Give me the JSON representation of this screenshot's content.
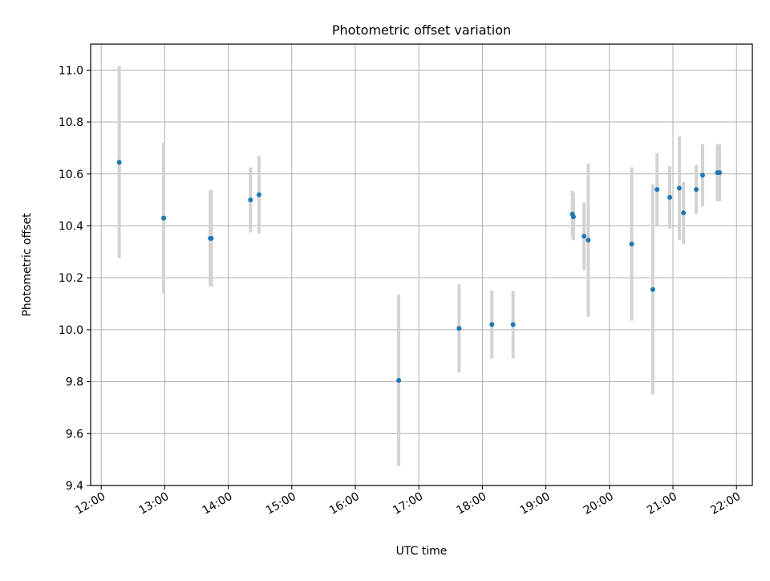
{
  "chart_data": {
    "type": "scatter",
    "title": "Photometric offset variation",
    "xlabel": "UTC time",
    "ylabel": "Photometric offset",
    "xlim_minutes": [
      710,
      1335
    ],
    "ylim": [
      9.4,
      11.1
    ],
    "x_ticks": [
      "12:00",
      "13:00",
      "14:00",
      "15:00",
      "16:00",
      "17:00",
      "18:00",
      "19:00",
      "20:00",
      "21:00",
      "22:00"
    ],
    "y_ticks": [
      9.4,
      9.6,
      9.8,
      10.0,
      10.2,
      10.4,
      10.6,
      10.8,
      11.0
    ],
    "y_tick_labels": [
      "9.4",
      "9.6",
      "9.8",
      "10.0",
      "10.2",
      "10.4",
      "10.6",
      "10.8",
      "11.0"
    ],
    "grid": true,
    "x_tick_rotation_deg": 30,
    "colors": {
      "point": "#1f77b4",
      "errorbar": "#d3d3d3",
      "grid": "#b0b0b0",
      "axes": "#000000"
    },
    "points": [
      {
        "time": "12:17",
        "y": 10.645,
        "err": 0.37
      },
      {
        "time": "12:59",
        "y": 10.43,
        "err": 0.29
      },
      {
        "time": "13:43",
        "y": 10.352,
        "err": 0.185
      },
      {
        "time": "13:44",
        "y": 10.352,
        "err": 0.185
      },
      {
        "time": "14:21",
        "y": 10.5,
        "err": 0.125
      },
      {
        "time": "14:29",
        "y": 10.52,
        "err": 0.15
      },
      {
        "time": "16:41",
        "y": 9.805,
        "err": 0.33
      },
      {
        "time": "17:38",
        "y": 10.005,
        "err": 0.17
      },
      {
        "time": "18:09",
        "y": 10.02,
        "err": 0.13
      },
      {
        "time": "18:29",
        "y": 10.02,
        "err": 0.13
      },
      {
        "time": "19:25",
        "y": 10.445,
        "err": 0.09
      },
      {
        "time": "19:26",
        "y": 10.435,
        "err": 0.09
      },
      {
        "time": "19:36",
        "y": 10.36,
        "err": 0.13
      },
      {
        "time": "19:40",
        "y": 10.345,
        "err": 0.295
      },
      {
        "time": "20:21",
        "y": 10.33,
        "err": 0.295
      },
      {
        "time": "20:41",
        "y": 10.155,
        "err": 0.405
      },
      {
        "time": "20:45",
        "y": 10.54,
        "err": 0.14
      },
      {
        "time": "20:57",
        "y": 10.51,
        "err": 0.12
      },
      {
        "time": "21:06",
        "y": 10.545,
        "err": 0.2
      },
      {
        "time": "21:10",
        "y": 10.45,
        "err": 0.12
      },
      {
        "time": "21:22",
        "y": 10.54,
        "err": 0.095
      },
      {
        "time": "21:28",
        "y": 10.595,
        "err": 0.12
      },
      {
        "time": "21:42",
        "y": 10.605,
        "err": 0.11
      },
      {
        "time": "21:44",
        "y": 10.605,
        "err": 0.11
      }
    ]
  }
}
